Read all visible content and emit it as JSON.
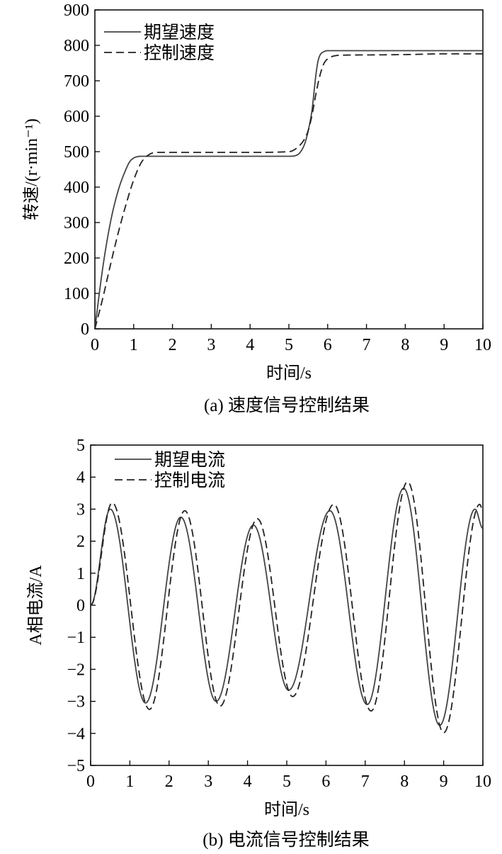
{
  "chart_data": [
    {
      "type": "line",
      "xlabel": "时间/s",
      "ylabel": "转速/(r·min⁻¹)",
      "caption": "(a) 速度信号控制结果",
      "xlim": [
        0,
        10
      ],
      "ylim": [
        0,
        900
      ],
      "xticks": [
        0,
        1,
        2,
        3,
        4,
        5,
        6,
        7,
        8,
        9,
        10
      ],
      "yticks": [
        0,
        100,
        200,
        300,
        400,
        500,
        600,
        700,
        800,
        900
      ],
      "grid": false,
      "legend_position": "top-left",
      "series": [
        {
          "name": "期望速度",
          "style": "solid",
          "color": "#444444",
          "x": [
            0,
            0.2,
            0.4,
            0.6,
            0.8,
            0.9,
            1.0,
            1.1,
            1.2,
            1.5,
            2,
            3,
            4,
            5,
            5.2,
            5.4,
            5.5,
            5.6,
            5.65,
            5.7,
            5.75,
            5.8,
            5.9,
            6.0,
            6.2,
            7,
            8,
            9,
            10
          ],
          "y": [
            0,
            170,
            300,
            390,
            450,
            472,
            482,
            486,
            487,
            487,
            487,
            487,
            487,
            487,
            490,
            520,
            560,
            620,
            670,
            720,
            755,
            772,
            782,
            785,
            785,
            785,
            785,
            785,
            785
          ]
        },
        {
          "name": "控制速度",
          "style": "dashed",
          "color": "#222222",
          "x": [
            0,
            0.2,
            0.4,
            0.6,
            0.8,
            1.0,
            1.2,
            1.4,
            1.6,
            2,
            3,
            4,
            5,
            5.2,
            5.4,
            5.5,
            5.6,
            5.7,
            5.8,
            5.9,
            6.0,
            6.1,
            6.3,
            7,
            8,
            9,
            10
          ],
          "y": [
            0,
            85,
            180,
            270,
            350,
            420,
            470,
            492,
            498,
            498,
            498,
            498,
            500,
            510,
            535,
            560,
            605,
            665,
            715,
            748,
            762,
            768,
            772,
            773,
            774,
            776,
            776
          ]
        }
      ]
    },
    {
      "type": "line",
      "xlabel": "时间/s",
      "ylabel": "A相电流/A",
      "caption": "(b) 电流信号控制结果",
      "xlim": [
        0,
        10
      ],
      "ylim": [
        -5,
        5
      ],
      "xticks": [
        0,
        1,
        2,
        3,
        4,
        5,
        6,
        7,
        8,
        9,
        10
      ],
      "yticks": [
        -5,
        -4,
        -3,
        -2,
        -1,
        0,
        1,
        2,
        3,
        4,
        5
      ],
      "ytick_labels": [
        "−5",
        "−4",
        "−3",
        "−2",
        "−1",
        "0",
        "1",
        "2",
        "3",
        "4",
        "5"
      ],
      "grid": false,
      "legend_position": "top-left",
      "series": [
        {
          "name": "期望电流",
          "style": "solid",
          "color": "#444444",
          "start": [
            0,
            0
          ],
          "peaks": [
            [
              0.5,
              3.0
            ],
            [
              1.4,
              -3.05
            ],
            [
              2.3,
              2.75
            ],
            [
              3.2,
              -3.0
            ],
            [
              4.15,
              2.5
            ],
            [
              5.05,
              -2.65
            ],
            [
              6.1,
              2.95
            ],
            [
              7.05,
              -3.1
            ],
            [
              7.98,
              3.65
            ],
            [
              8.9,
              -3.75
            ],
            [
              9.8,
              3.0
            ]
          ],
          "end": [
            10,
            2.4
          ]
        },
        {
          "name": "控制电流",
          "style": "dashed",
          "color": "#222222",
          "start": [
            0,
            0
          ],
          "peaks": [
            [
              0.55,
              3.2
            ],
            [
              1.5,
              -3.25
            ],
            [
              2.4,
              2.95
            ],
            [
              3.3,
              -3.15
            ],
            [
              4.25,
              2.7
            ],
            [
              5.15,
              -2.85
            ],
            [
              6.2,
              3.15
            ],
            [
              7.15,
              -3.3
            ],
            [
              8.08,
              3.85
            ],
            [
              9.0,
              -3.98
            ],
            [
              9.92,
              3.15
            ]
          ],
          "end": [
            10,
            2.95
          ]
        }
      ]
    }
  ]
}
